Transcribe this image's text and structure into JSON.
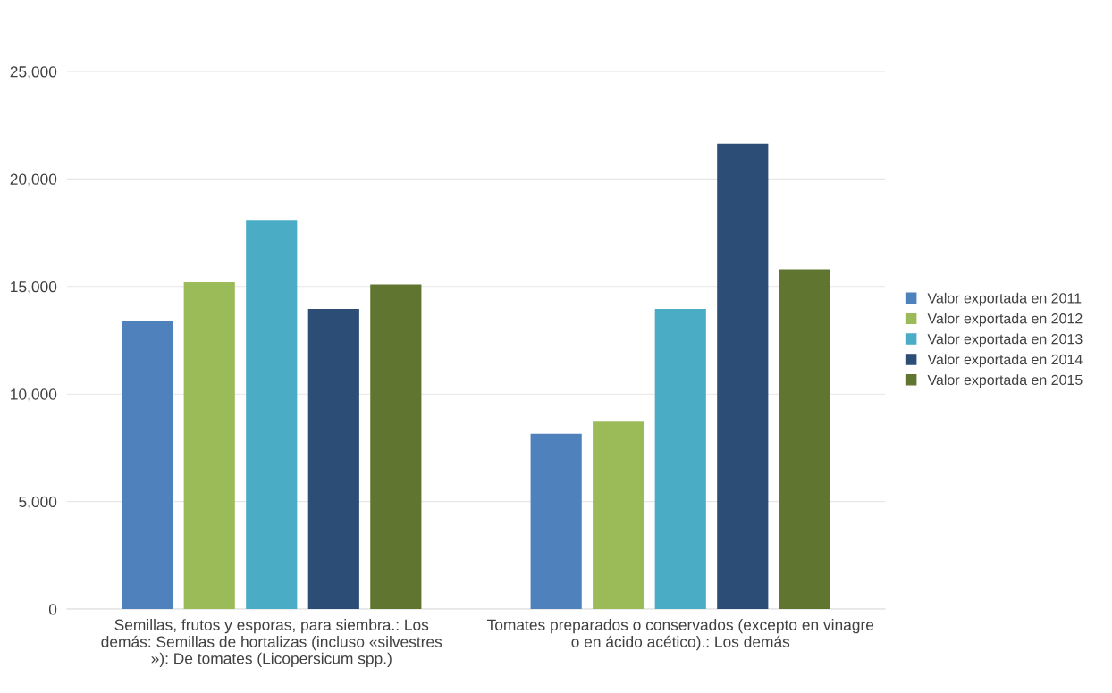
{
  "chart_data": {
    "type": "bar",
    "categories": [
      "Semillas, frutos y esporas, para siembra.: Los demás: Semillas de hortalizas (incluso «silvestres »): De tomates (Licopersicum spp.)",
      "Tomates preparados o conservados (excepto en vinagre o en ácido acético).: Los demás"
    ],
    "series": [
      {
        "name": "Valor exportada en 2011",
        "color": "#4f81bd",
        "values": [
          13400,
          8150
        ]
      },
      {
        "name": "Valor exportada en 2012",
        "color": "#9bbb59",
        "values": [
          15200,
          8750
        ]
      },
      {
        "name": "Valor exportada en 2013",
        "color": "#4bacc6",
        "values": [
          18100,
          13950
        ]
      },
      {
        "name": "Valor exportada en 2014",
        "color": "#2c4d75",
        "values": [
          13950,
          21650
        ]
      },
      {
        "name": "Valor exportada en 2015",
        "color": "#607530",
        "values": [
          15100,
          15800
        ]
      }
    ],
    "ylim": [
      0,
      25000
    ],
    "yticks": [
      {
        "value": 0,
        "label": "0"
      },
      {
        "value": 5000,
        "label": "5,000"
      },
      {
        "value": 10000,
        "label": "10,000"
      },
      {
        "value": 15000,
        "label": "15,000"
      },
      {
        "value": 20000,
        "label": "20,000"
      },
      {
        "value": 25000,
        "label": "25,000"
      }
    ],
    "grid": "y",
    "legend": "right"
  }
}
